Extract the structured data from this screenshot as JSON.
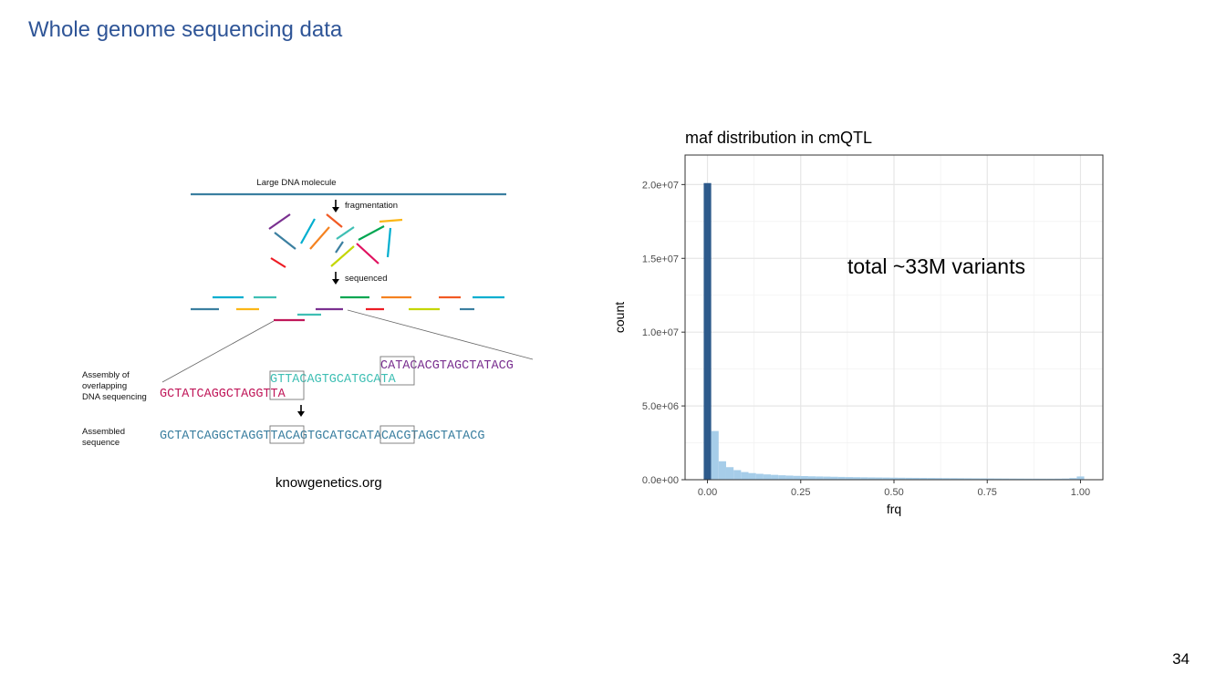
{
  "slide": {
    "title": "Whole genome sequencing data",
    "page_number": "34",
    "credit": "knowgenetics.org",
    "annotation": "total ~33M variants"
  },
  "figure": {
    "molecule_label": "Large DNA molecule",
    "step1": "fragmentation",
    "step2": "sequenced",
    "assembly_label_lines": [
      "Assembly of",
      "overlapping",
      "DNA sequencing"
    ],
    "assembled_label_lines": [
      "Assembled",
      "sequence"
    ],
    "read1": "GCTATCAGGCTAGGTTA",
    "read2": "GTTACAGTGCATGCATA",
    "read3": "CATACACGTAGCTATACG",
    "assembled": "GCTATCAGGCTAGGTTACAGTGCATGCATACACGTAGCTATACG",
    "colors": {
      "read1": "#c0185a",
      "read2": "#3fbfb4",
      "read3": "#7a3090",
      "assembled": "#3b7fa0",
      "molecule": "#3b7fa0"
    }
  },
  "chart_data": {
    "type": "bar",
    "title": "maf distribution in cmQTL",
    "xlabel": "frq",
    "ylabel": "count",
    "xlim": [
      -0.06,
      1.06
    ],
    "ylim": [
      0,
      22000000
    ],
    "x_ticks": [
      0,
      0.25,
      0.5,
      0.75,
      1
    ],
    "x_tick_labels": [
      "0.00",
      "0.25",
      "0.50",
      "0.75",
      "1.00"
    ],
    "y_ticks": [
      0,
      5000000,
      10000000,
      15000000,
      20000000
    ],
    "y_tick_labels": [
      "0.0e+00",
      "5.0e+06",
      "1.0e+07",
      "1.5e+07",
      "2.0e+07"
    ],
    "grid": true,
    "bin_width": 0.02,
    "colors": {
      "first_bin": "#2d5a8b",
      "other_bins": "#a6cde9"
    },
    "bins": [
      {
        "x": 0.0,
        "count": 20100000
      },
      {
        "x": 0.02,
        "count": 3300000
      },
      {
        "x": 0.04,
        "count": 1250000
      },
      {
        "x": 0.06,
        "count": 850000
      },
      {
        "x": 0.08,
        "count": 650000
      },
      {
        "x": 0.1,
        "count": 520000
      },
      {
        "x": 0.12,
        "count": 450000
      },
      {
        "x": 0.14,
        "count": 400000
      },
      {
        "x": 0.16,
        "count": 360000
      },
      {
        "x": 0.18,
        "count": 330000
      },
      {
        "x": 0.2,
        "count": 300000
      },
      {
        "x": 0.22,
        "count": 280000
      },
      {
        "x": 0.24,
        "count": 260000
      },
      {
        "x": 0.26,
        "count": 245000
      },
      {
        "x": 0.28,
        "count": 230000
      },
      {
        "x": 0.3,
        "count": 220000
      },
      {
        "x": 0.32,
        "count": 210000
      },
      {
        "x": 0.34,
        "count": 200000
      },
      {
        "x": 0.36,
        "count": 190000
      },
      {
        "x": 0.38,
        "count": 180000
      },
      {
        "x": 0.4,
        "count": 172000
      },
      {
        "x": 0.42,
        "count": 165000
      },
      {
        "x": 0.44,
        "count": 158000
      },
      {
        "x": 0.46,
        "count": 152000
      },
      {
        "x": 0.48,
        "count": 146000
      },
      {
        "x": 0.5,
        "count": 140000
      },
      {
        "x": 0.52,
        "count": 135000
      },
      {
        "x": 0.54,
        "count": 130000
      },
      {
        "x": 0.56,
        "count": 126000
      },
      {
        "x": 0.58,
        "count": 122000
      },
      {
        "x": 0.6,
        "count": 118000
      },
      {
        "x": 0.62,
        "count": 114000
      },
      {
        "x": 0.64,
        "count": 110000
      },
      {
        "x": 0.66,
        "count": 106000
      },
      {
        "x": 0.68,
        "count": 102000
      },
      {
        "x": 0.7,
        "count": 98000
      },
      {
        "x": 0.72,
        "count": 94000
      },
      {
        "x": 0.74,
        "count": 90000
      },
      {
        "x": 0.76,
        "count": 87000
      },
      {
        "x": 0.78,
        "count": 84000
      },
      {
        "x": 0.8,
        "count": 81000
      },
      {
        "x": 0.82,
        "count": 78000
      },
      {
        "x": 0.84,
        "count": 76000
      },
      {
        "x": 0.86,
        "count": 74000
      },
      {
        "x": 0.88,
        "count": 72000
      },
      {
        "x": 0.9,
        "count": 71000
      },
      {
        "x": 0.92,
        "count": 71000
      },
      {
        "x": 0.94,
        "count": 73000
      },
      {
        "x": 0.96,
        "count": 80000
      },
      {
        "x": 0.98,
        "count": 110000
      },
      {
        "x": 1.0,
        "count": 220000
      }
    ]
  }
}
